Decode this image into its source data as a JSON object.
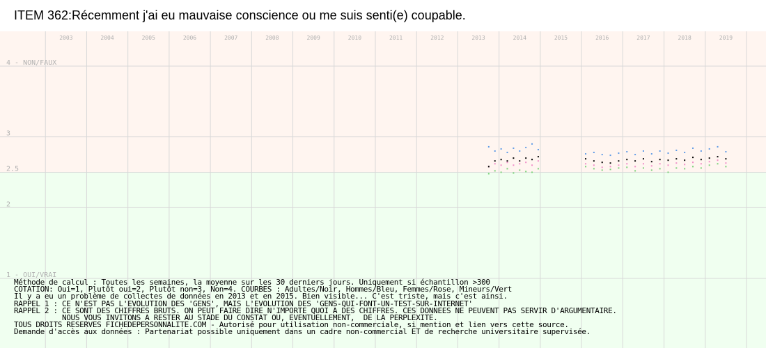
{
  "title": "ITEM 362:Récemment j'ai eu mauvaise conscience ou me suis senti(e) coupable.",
  "colors": {
    "background_upper": "#fff5f0",
    "background_lower": "#f0fff0",
    "grid": "#d8d8d8",
    "adultes": "#000000",
    "hommes": "#5f9be6",
    "femmes": "#f08cc8",
    "mineurs": "#78d278"
  },
  "notes": [
    "Méthode de calcul : Toutes les semaines, la moyenne sur les 30 derniers jours. Uniquement si échantillon >300",
    "COTATION: Oui=1, Plutôt oui=2, Plutôt non=3, Non=4. COURBES : Adultes/Noir, Hommes/Bleu, Femmes/Rose, Mineurs/Vert",
    "Il y a eu un problème de collectes de données en 2013 et en 2015. Bien visible... C'est triste, mais c'est ainsi.",
    "RAPPEL 1 : CE N'EST PAS L'EVOLUTION DES 'GENS', MAIS L'EVOLUTION DES 'GENS-QUI-FONT-UN-TEST-SUR-INTERNET'",
    "RAPPEL 2 : CE SONT DES CHIFFRES BRUTS. ON PEUT FAIRE DIRE N'IMPORTE QUOI A DES CHIFFRES. CES DONNEES NE PEUVENT PAS SERVIR D'ARGUMENTAIRE.",
    "           NOUS VOUS INVITONS A RESTER AU STADE DU CONSTAT OU, EVENTUELLEMENT,  DE LA PERPLEXITE.",
    "TOUS DROITS RESERVES FICHEDEPERSONNALITE.COM - Autorisé pour utilisation non-commerciale, si mention et lien vers cette source.",
    "Demande d'accès aux données : Partenariat possible uniquement dans un cadre non-commercial ET de recherche universitaire supervisée."
  ],
  "chart_data": {
    "type": "scatter",
    "x_range": [
      2002,
      2020
    ],
    "ylim": [
      1,
      4
    ],
    "y_ticks": [
      {
        "value": 4,
        "label": "4 - NON/FAUX"
      },
      {
        "value": 3,
        "label": "3"
      },
      {
        "value": 2.5,
        "label": "2.5"
      },
      {
        "value": 2,
        "label": "2"
      },
      {
        "value": 1,
        "label": "1 - OUI/VRAI"
      }
    ],
    "x_ticks": [
      "2003",
      "2004",
      "2005",
      "2006",
      "2007",
      "2008",
      "2009",
      "2010",
      "2011",
      "2012",
      "2013",
      "2014",
      "2015",
      "2016",
      "2017",
      "2018",
      "2019"
    ],
    "series": [
      {
        "name": "Adultes",
        "color": "#000000",
        "segments": [
          {
            "x": [
              2013.75,
              2013.9,
              2014.05,
              2014.2,
              2014.35,
              2014.5,
              2014.65,
              2014.8,
              2014.95
            ],
            "y": [
              2.58,
              2.66,
              2.68,
              2.66,
              2.7,
              2.66,
              2.7,
              2.68,
              2.72
            ]
          },
          {
            "x": [
              2016.1,
              2016.3,
              2016.5,
              2016.7,
              2016.9,
              2017.1,
              2017.3,
              2017.5,
              2017.7,
              2017.9,
              2018.1,
              2018.3,
              2018.5,
              2018.7,
              2018.9,
              2019.1,
              2019.3,
              2019.5
            ],
            "y": [
              2.69,
              2.66,
              2.64,
              2.63,
              2.66,
              2.68,
              2.66,
              2.69,
              2.65,
              2.68,
              2.67,
              2.69,
              2.67,
              2.71,
              2.68,
              2.7,
              2.72,
              2.69
            ]
          }
        ]
      },
      {
        "name": "Hommes",
        "color": "#5f9be6",
        "segments": [
          {
            "x": [
              2013.75,
              2013.9,
              2014.05,
              2014.2,
              2014.35,
              2014.5,
              2014.65,
              2014.8,
              2014.95
            ],
            "y": [
              2.86,
              2.8,
              2.83,
              2.78,
              2.84,
              2.8,
              2.85,
              2.9,
              2.82
            ]
          },
          {
            "x": [
              2016.1,
              2016.3,
              2016.5,
              2016.7,
              2016.9,
              2017.1,
              2017.3,
              2017.5,
              2017.7,
              2017.9,
              2018.1,
              2018.3,
              2018.5,
              2018.7,
              2018.9,
              2019.1,
              2019.3,
              2019.5
            ],
            "y": [
              2.76,
              2.78,
              2.75,
              2.74,
              2.77,
              2.79,
              2.75,
              2.8,
              2.76,
              2.8,
              2.77,
              2.81,
              2.78,
              2.84,
              2.8,
              2.83,
              2.86,
              2.79
            ]
          }
        ]
      },
      {
        "name": "Femmes",
        "color": "#f08cc8",
        "segments": [
          {
            "x": [
              2013.75,
              2013.9,
              2014.05,
              2014.2,
              2014.35,
              2014.5,
              2014.65,
              2014.8,
              2014.95
            ],
            "y": [
              2.58,
              2.62,
              2.6,
              2.64,
              2.6,
              2.62,
              2.64,
              2.6,
              2.66
            ]
          },
          {
            "x": [
              2016.1,
              2016.3,
              2016.5,
              2016.7,
              2016.9,
              2017.1,
              2017.3,
              2017.5,
              2017.7,
              2017.9,
              2018.1,
              2018.3,
              2018.5,
              2018.7,
              2018.9,
              2019.1,
              2019.3,
              2019.5
            ],
            "y": [
              2.62,
              2.6,
              2.57,
              2.58,
              2.6,
              2.62,
              2.58,
              2.62,
              2.59,
              2.62,
              2.6,
              2.63,
              2.61,
              2.64,
              2.62,
              2.65,
              2.67,
              2.63
            ]
          }
        ]
      },
      {
        "name": "Mineurs",
        "color": "#78d278",
        "segments": [
          {
            "x": [
              2013.75,
              2013.9,
              2014.05,
              2014.2,
              2014.35,
              2014.5,
              2014.65,
              2014.8,
              2014.95
            ],
            "y": [
              2.48,
              2.52,
              2.5,
              2.55,
              2.49,
              2.53,
              2.51,
              2.5,
              2.55
            ]
          },
          {
            "x": [
              2016.1,
              2016.3,
              2016.5,
              2016.7,
              2016.9,
              2017.1,
              2017.3,
              2017.5,
              2017.7,
              2017.9,
              2018.1,
              2018.3,
              2018.5,
              2018.7,
              2018.9,
              2019.1,
              2019.3,
              2019.5
            ],
            "y": [
              2.58,
              2.55,
              2.53,
              2.54,
              2.56,
              2.57,
              2.52,
              2.56,
              2.53,
              2.55,
              2.5,
              2.56,
              2.55,
              2.58,
              2.56,
              2.6,
              2.62,
              2.58
            ]
          }
        ]
      }
    ]
  }
}
